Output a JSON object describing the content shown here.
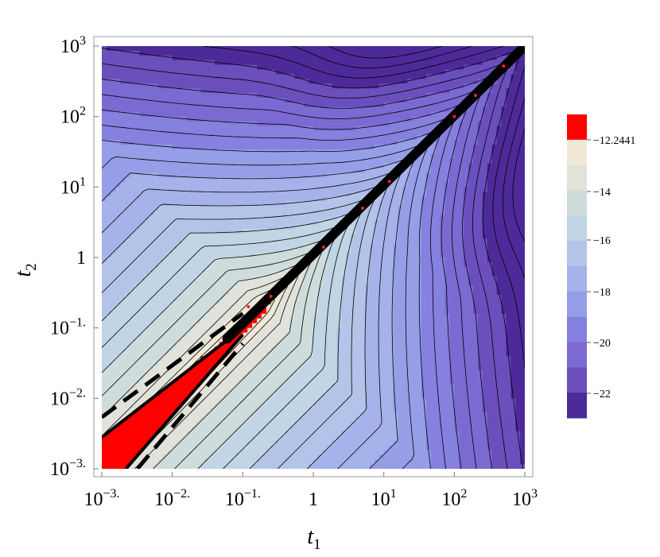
{
  "chart_data": {
    "type": "heatmap",
    "subtype": "contour",
    "title": "",
    "xlabel": "t",
    "xlabel_subscript": "1",
    "ylabel": "t",
    "ylabel_subscript": "2",
    "x_scale": "log",
    "y_scale": "log",
    "xlim": [
      0.001,
      1000
    ],
    "ylim": [
      0.001,
      1000
    ],
    "x_ticks": [
      {
        "value": 0.001,
        "base": "10",
        "exp": "−3."
      },
      {
        "value": 0.01,
        "base": "10",
        "exp": "−2."
      },
      {
        "value": 0.1,
        "base": "10",
        "exp": "−1."
      },
      {
        "value": 1,
        "base": "1",
        "exp": ""
      },
      {
        "value": 10,
        "base": "10",
        "exp": "1"
      },
      {
        "value": 100,
        "base": "10",
        "exp": "2"
      },
      {
        "value": 1000,
        "base": "10",
        "exp": "3"
      }
    ],
    "y_ticks": [
      {
        "value": 0.001,
        "base": "10",
        "exp": "−3."
      },
      {
        "value": 0.01,
        "base": "10",
        "exp": "−2."
      },
      {
        "value": 0.1,
        "base": "10",
        "exp": "−1."
      },
      {
        "value": 1,
        "base": "1",
        "exp": ""
      },
      {
        "value": 10,
        "base": "10",
        "exp": "1"
      },
      {
        "value": 100,
        "base": "10",
        "exp": "2"
      },
      {
        "value": 1000,
        "base": "10",
        "exp": "3"
      }
    ],
    "legend": {
      "placement": "right",
      "labels": [
        "−12.2441",
        "−14",
        "−16",
        "−18",
        "−20",
        "−22"
      ],
      "bins": [
        {
          "from": -12.2441,
          "to": null,
          "color": "#ff0000"
        },
        {
          "from": -13,
          "to": -12.2441,
          "color": "#f1e8d8"
        },
        {
          "from": -14,
          "to": -13,
          "color": "#e1e2da"
        },
        {
          "from": -15,
          "to": -14,
          "color": "#cfdcdc"
        },
        {
          "from": -16,
          "to": -15,
          "color": "#c1d5e4"
        },
        {
          "from": -17,
          "to": -16,
          "color": "#b4c4e8"
        },
        {
          "from": -18,
          "to": -17,
          "color": "#a6b2ea"
        },
        {
          "from": -19,
          "to": -18,
          "color": "#969ee8"
        },
        {
          "from": -20,
          "to": -19,
          "color": "#8680df"
        },
        {
          "from": -21,
          "to": -20,
          "color": "#7a6ad2"
        },
        {
          "from": -22,
          "to": -21,
          "color": "#6a4fbd"
        },
        {
          "from": null,
          "to": -22,
          "color": "#4d2a99"
        }
      ]
    },
    "dashed_boundary_lines": [
      {
        "x": [
          0.001,
          0.1
        ],
        "y": [
          0.0054,
          0.16
        ]
      },
      {
        "x": [
          0.0032,
          0.1
        ],
        "y": [
          0.001,
          0.06
        ]
      }
    ],
    "solid_boundary_lines": [
      {
        "x": [
          0.001,
          0.1
        ],
        "y": [
          0.0028,
          0.1
        ]
      },
      {
        "x": [
          0.0022,
          0.1
        ],
        "y": [
          0.001,
          0.08
        ]
      }
    ],
    "diagonal_markers": [
      {
        "x": 0.12,
        "y": 0.2
      },
      {
        "x": 0.25,
        "y": 0.28
      },
      {
        "x": 1.4,
        "y": 1.4
      },
      {
        "x": 5,
        "y": 5
      },
      {
        "x": 12,
        "y": 12
      },
      {
        "x": 100,
        "y": 100
      },
      {
        "x": 200,
        "y": 200
      },
      {
        "x": 500,
        "y": 520
      }
    ],
    "grid": false
  }
}
